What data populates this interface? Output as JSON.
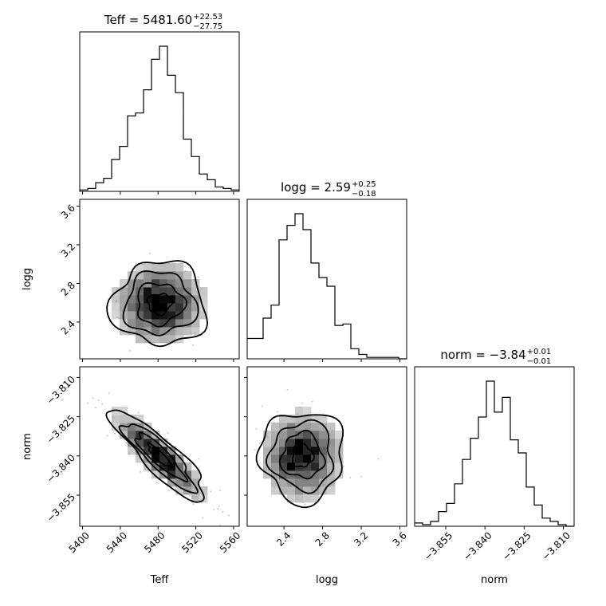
{
  "chart_data": {
    "type": "corner",
    "params": [
      "Teff",
      "logg",
      "norm"
    ],
    "titles": [
      {
        "param": "Teff",
        "label": "Teff = 5481.60",
        "plus": "+22.53",
        "minus": "−27.75"
      },
      {
        "param": "logg",
        "label": "logg = 2.59",
        "plus": "+0.25",
        "minus": "−0.18"
      },
      {
        "param": "norm",
        "label": "norm = −3.84",
        "plus": "+0.01",
        "minus": "−0.01"
      }
    ],
    "axes": {
      "Teff": {
        "range": [
          5397,
          5566
        ],
        "ticks": [
          5400,
          5440,
          5480,
          5520,
          5560
        ]
      },
      "logg": {
        "range": [
          2.02,
          3.67
        ],
        "ticks": [
          2.4,
          2.8,
          3.2,
          3.6
        ]
      },
      "norm": {
        "range": [
          -3.8669,
          -3.8059
        ],
        "ticks": [
          -3.855,
          -3.84,
          -3.825,
          -3.81
        ]
      }
    },
    "tick_labels": {
      "Teff": [
        "5400",
        "5440",
        "5480",
        "5520",
        "5560"
      ],
      "logg": [
        "2.4",
        "2.8",
        "3.2",
        "3.6"
      ],
      "norm": [
        "−3.855",
        "−3.840",
        "−3.825",
        "−3.810"
      ]
    },
    "hist1d": {
      "Teff": {
        "edges": [
          5397,
          5405.45,
          5413.9,
          5422.35,
          5430.8,
          5439.25,
          5447.7,
          5456.15,
          5464.6,
          5473.05,
          5481.5,
          5489.95,
          5498.4,
          5506.85,
          5515.3,
          5523.75,
          5532.2,
          5540.65,
          5549.1,
          5557.55,
          5566
        ],
        "counts": [
          1,
          2,
          6,
          9,
          22,
          31,
          52,
          54,
          70,
          91,
          100,
          80,
          68,
          36,
          24,
          12,
          8,
          3,
          2,
          1
        ]
      },
      "logg": {
        "edges": [
          2.02,
          2.1025,
          2.185,
          2.2675,
          2.35,
          2.4325,
          2.515,
          2.5975,
          2.68,
          2.7625,
          2.845,
          2.9275,
          3.01,
          3.0925,
          3.175,
          3.2575,
          3.34,
          3.4225,
          3.505,
          3.5875,
          3.67
        ],
        "counts": [
          14,
          14,
          28,
          37,
          82,
          92,
          100,
          89,
          66,
          56,
          50,
          23,
          24,
          7,
          3,
          1,
          1,
          1,
          1,
          0
        ]
      },
      "norm": {
        "edges": [
          -3.8669,
          -3.86385,
          -3.8608,
          -3.85775,
          -3.8547,
          -3.85165,
          -3.8486,
          -3.84555,
          -3.8425,
          -3.83945,
          -3.8364,
          -3.83335,
          -3.8303,
          -3.82725,
          -3.8242,
          -3.82115,
          -3.8181,
          -3.81505,
          -3.812,
          -3.80895,
          -3.8059
        ],
        "counts": [
          2,
          1,
          3,
          9,
          14,
          26,
          41,
          54,
          67,
          89,
          70,
          79,
          53,
          45,
          24,
          13,
          5,
          3,
          1,
          0
        ]
      }
    },
    "hist2d": [
      {
        "x": "Teff",
        "y": "logg",
        "center": [
          5481.6,
          2.59
        ],
        "cov": [
          [
            625,
            0
          ],
          [
            0,
            0.0461
          ]
        ]
      },
      {
        "x": "Teff",
        "y": "norm",
        "center": [
          5481.6,
          -3.84
        ],
        "cov": [
          [
            625,
            -0.1906
          ],
          [
            -0.1906,
            7.57e-05
          ]
        ]
      },
      {
        "x": "logg",
        "y": "norm",
        "center": [
          2.59,
          -3.84
        ],
        "cov": [
          [
            0.0461,
            0
          ],
          [
            0,
            7.57e-05
          ]
        ]
      }
    ],
    "contour_levels_sigma": [
      0.5,
      1.0,
      1.5,
      2.0
    ],
    "scatter_points": "light grey samples outside contours",
    "colors": {
      "line": "#000000",
      "density_max": "#000000",
      "density_min": "#f2f2f2",
      "points": "#9a9a9a"
    },
    "grid": false
  }
}
